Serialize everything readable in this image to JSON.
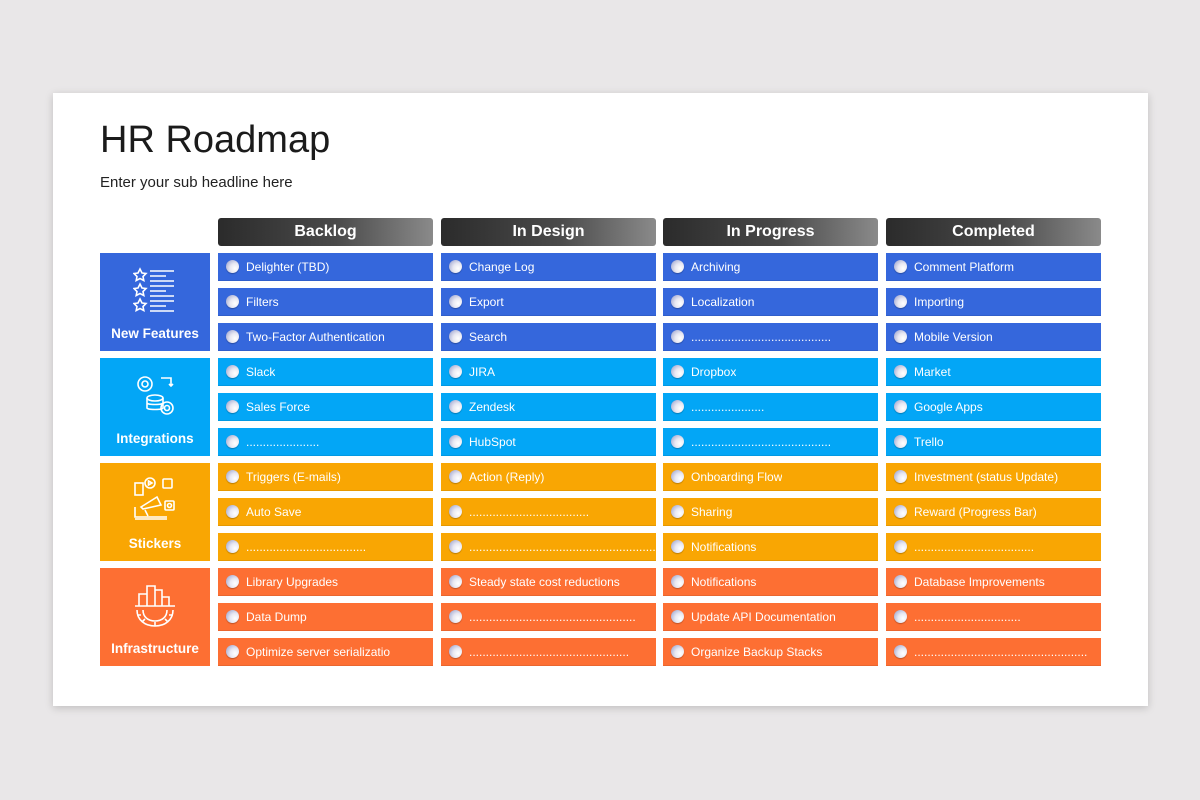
{
  "title": "HR Roadmap",
  "subtitle": "Enter your sub headline here",
  "columns": [
    "Backlog",
    "In Design",
    "In Progress",
    "Completed"
  ],
  "groups": [
    {
      "name": "New Features",
      "icon": "star-list-icon",
      "color": "#3567dc",
      "rows": [
        [
          "Delighter (TBD)",
          "Change Log",
          "Archiving",
          "Comment Platform"
        ],
        [
          "Filters",
          "Export",
          "Localization",
          "Importing"
        ],
        [
          "Two-Factor Authentication",
          "Search",
          "..........................................",
          "Mobile Version"
        ]
      ]
    },
    {
      "name": "Integrations",
      "icon": "gears-database-icon",
      "color": "#03a6f6",
      "rows": [
        [
          "Slack",
          "JIRA",
          "Dropbox",
          "Market"
        ],
        [
          "Sales Force",
          "Zendesk",
          "......................",
          "Google Apps"
        ],
        [
          "......................",
          "HubSpot",
          "..........................................",
          "Trello"
        ]
      ]
    },
    {
      "name": "Stickers",
      "icon": "megaphone-social-icon",
      "color": "#f9a603",
      "rows": [
        [
          "Triggers (E-mails)",
          "Action (Reply)",
          "Onboarding Flow",
          "Investment (status Update)"
        ],
        [
          "Auto Save",
          "....................................",
          "Sharing",
          "Reward (Progress Bar)"
        ],
        [
          "....................................",
          "......................................................................",
          "Notifications",
          "...................................."
        ]
      ]
    },
    {
      "name": "Infrastructure",
      "icon": "city-gear-icon",
      "color": "#fd6f33",
      "rows": [
        [
          "Library Upgrades",
          "Steady state cost reductions",
          "Notifications",
          "Database Improvements"
        ],
        [
          "Data Dump",
          "..................................................",
          "Update API Documentation",
          "................................"
        ],
        [
          "Optimize server  serializatio",
          "................................................",
          "Organize Backup Stacks",
          "...................................................."
        ]
      ]
    }
  ]
}
